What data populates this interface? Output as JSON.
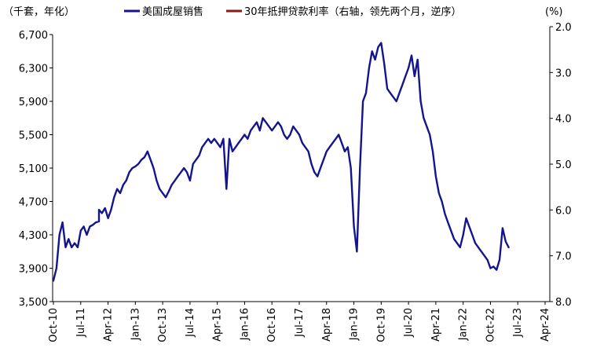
{
  "chart_data": {
    "type": "line",
    "left_axis_unit": "（千套，年化）",
    "right_axis_unit": "(%)",
    "legend_position": "top-center",
    "x_ticks": [
      "Oct-10",
      "Jul-11",
      "Apr-12",
      "Jan-13",
      "Oct-13",
      "Jul-14",
      "Apr-15",
      "Jan-16",
      "Oct-16",
      "Jul-17",
      "Apr-18",
      "Jan-19",
      "Oct-19",
      "Jul-20",
      "Apr-21",
      "Jan-22",
      "Oct-22",
      "Jul-23",
      "Apr-24"
    ],
    "y_left": {
      "min": 3500,
      "max": 6700,
      "ticks": [
        "3,500",
        "3,900",
        "4,300",
        "4,700",
        "5,100",
        "5,500",
        "5,900",
        "6,300",
        "6,700"
      ]
    },
    "y_right": {
      "min": 2.0,
      "max": 8.0,
      "inverted": true,
      "ticks": [
        "2.0",
        "3.0",
        "4.0",
        "5.0",
        "6.0",
        "7.0",
        "8.0"
      ]
    },
    "series": [
      {
        "name": "美国成屋销售",
        "axis": "left",
        "color": "#14148c",
        "points": [
          [
            "2010-10",
            3750
          ],
          [
            "2010-11",
            3900
          ],
          [
            "2010-12",
            4300
          ],
          [
            "2011-01",
            4450
          ],
          [
            "2011-02",
            4150
          ],
          [
            "2011-03",
            4250
          ],
          [
            "2011-04",
            4150
          ],
          [
            "2011-05",
            4200
          ],
          [
            "2011-06",
            4150
          ],
          [
            "2011-07",
            4350
          ],
          [
            "2011-08",
            4400
          ],
          [
            "2011-09",
            4300
          ],
          [
            "2011-10",
            4400
          ],
          [
            "2011-11",
            4420
          ],
          [
            "2011-12",
            4450
          ],
          [
            "2011-13",
            4460
          ],
          [
            "2012-01",
            4600
          ],
          [
            "2012-02",
            4560
          ],
          [
            "2012-03",
            4620
          ],
          [
            "2012-04",
            4500
          ],
          [
            "2012-05",
            4600
          ],
          [
            "2012-06",
            4750
          ],
          [
            "2012-07",
            4850
          ],
          [
            "2012-08",
            4800
          ],
          [
            "2012-09",
            4900
          ],
          [
            "2012-10",
            4950
          ],
          [
            "2012-11",
            5050
          ],
          [
            "2012-12",
            5100
          ],
          [
            "2013-01",
            5120
          ],
          [
            "2013-02",
            5150
          ],
          [
            "2013-03",
            5200
          ],
          [
            "2013-04",
            5230
          ],
          [
            "2013-05",
            5300
          ],
          [
            "2013-06",
            5200
          ],
          [
            "2013-07",
            5100
          ],
          [
            "2013-08",
            4950
          ],
          [
            "2013-09",
            4850
          ],
          [
            "2013-10",
            4800
          ],
          [
            "2013-11",
            4750
          ],
          [
            "2013-12",
            4820
          ],
          [
            "2014-01",
            4900
          ],
          [
            "2014-02",
            4950
          ],
          [
            "2014-03",
            5000
          ],
          [
            "2014-04",
            5050
          ],
          [
            "2014-05",
            5100
          ],
          [
            "2014-06",
            5050
          ],
          [
            "2014-07",
            4950
          ],
          [
            "2014-08",
            5150
          ],
          [
            "2014-09",
            5200
          ],
          [
            "2014-10",
            5250
          ],
          [
            "2014-11",
            5350
          ],
          [
            "2014-12",
            5400
          ],
          [
            "2015-01",
            5450
          ],
          [
            "2015-02",
            5400
          ],
          [
            "2015-03",
            5450
          ],
          [
            "2015-04",
            5400
          ],
          [
            "2015-05",
            5350
          ],
          [
            "2015-06",
            5450
          ],
          [
            "2015-07",
            4850
          ],
          [
            "2015-08",
            5450
          ],
          [
            "2015-09",
            5300
          ],
          [
            "2015-10",
            5350
          ],
          [
            "2015-11",
            5400
          ],
          [
            "2015-12",
            5450
          ],
          [
            "2016-01",
            5500
          ],
          [
            "2016-02",
            5450
          ],
          [
            "2016-03",
            5550
          ],
          [
            "2016-04",
            5600
          ],
          [
            "2016-05",
            5650
          ],
          [
            "2016-06",
            5550
          ],
          [
            "2016-07",
            5700
          ],
          [
            "2016-08",
            5650
          ],
          [
            "2016-09",
            5600
          ],
          [
            "2016-10",
            5550
          ],
          [
            "2016-11",
            5600
          ],
          [
            "2016-12",
            5650
          ],
          [
            "2017-01",
            5600
          ],
          [
            "2017-02",
            5500
          ],
          [
            "2017-03",
            5450
          ],
          [
            "2017-04",
            5500
          ],
          [
            "2017-05",
            5600
          ],
          [
            "2017-06",
            5550
          ],
          [
            "2017-07",
            5500
          ],
          [
            "2017-08",
            5400
          ],
          [
            "2017-09",
            5350
          ],
          [
            "2017-10",
            5300
          ],
          [
            "2017-11",
            5150
          ],
          [
            "2017-12",
            5050
          ],
          [
            "2018-01",
            5000
          ],
          [
            "2018-02",
            5100
          ],
          [
            "2018-03",
            5200
          ],
          [
            "2018-04",
            5300
          ],
          [
            "2018-05",
            5350
          ],
          [
            "2018-06",
            5400
          ],
          [
            "2018-07",
            5450
          ],
          [
            "2018-08",
            5500
          ],
          [
            "2018-09",
            5400
          ],
          [
            "2018-10",
            5300
          ],
          [
            "2018-11",
            5350
          ],
          [
            "2018-12",
            5100
          ],
          [
            "2019-01",
            4400
          ],
          [
            "2019-02",
            4100
          ],
          [
            "2019-03",
            5100
          ],
          [
            "2019-04",
            5900
          ],
          [
            "2019-05",
            6000
          ],
          [
            "2019-06",
            6300
          ],
          [
            "2019-07",
            6500
          ],
          [
            "2019-08",
            6400
          ],
          [
            "2019-09",
            6550
          ],
          [
            "2019-10",
            6600
          ],
          [
            "2019-11",
            6350
          ],
          [
            "2019-12",
            6050
          ],
          [
            "2020-01",
            6000
          ],
          [
            "2020-02",
            5950
          ],
          [
            "2020-03",
            5900
          ],
          [
            "2020-04",
            6000
          ],
          [
            "2020-05",
            6100
          ],
          [
            "2020-06",
            6200
          ],
          [
            "2020-07",
            6300
          ],
          [
            "2020-08",
            6450
          ],
          [
            "2020-09",
            6200
          ],
          [
            "2020-10",
            6400
          ],
          [
            "2020-11",
            5900
          ],
          [
            "2020-12",
            5700
          ],
          [
            "2021-01",
            5600
          ],
          [
            "2021-02",
            5500
          ],
          [
            "2021-03",
            5300
          ],
          [
            "2021-04",
            5000
          ],
          [
            "2021-05",
            4800
          ],
          [
            "2021-06",
            4700
          ],
          [
            "2021-07",
            4550
          ],
          [
            "2021-08",
            4450
          ],
          [
            "2021-09",
            4350
          ],
          [
            "2021-10",
            4250
          ],
          [
            "2021-11",
            4200
          ],
          [
            "2021-12",
            4150
          ],
          [
            "2022-01",
            4300
          ],
          [
            "2022-02",
            4500
          ],
          [
            "2022-03",
            4400
          ],
          [
            "2022-04",
            4300
          ],
          [
            "2022-05",
            4200
          ],
          [
            "2022-06",
            4150
          ],
          [
            "2022-07",
            4100
          ],
          [
            "2022-08",
            4050
          ],
          [
            "2022-09",
            4000
          ],
          [
            "2022-10",
            3900
          ],
          [
            "2022-11",
            3920
          ],
          [
            "2022-12",
            3880
          ],
          [
            "2023-01",
            4000
          ],
          [
            "2023-02",
            4380
          ],
          [
            "2023-03",
            4220
          ],
          [
            "2023-04",
            4150
          ]
        ]
      },
      {
        "name": "30年抵押贷款利率（右轴，领先两个月，逆序）",
        "axis": "right",
        "color": "#8b1a1a",
        "points": []
      }
    ]
  }
}
